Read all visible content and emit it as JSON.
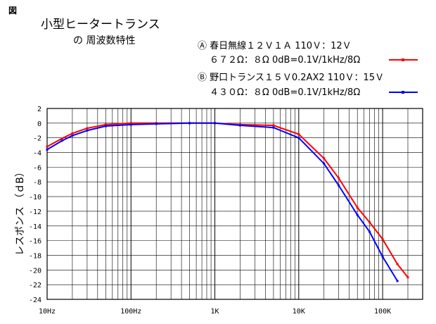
{
  "figure_label": "図",
  "chart_data": {
    "type": "line",
    "title": "小型ヒータートランス",
    "subtitle": "の 周波数特性",
    "ylabel": "レスポンス （ｄB）",
    "xlabel": "",
    "xscale": "log",
    "xlim": [
      10,
      300000
    ],
    "ylim": [
      -24,
      2
    ],
    "grid": true,
    "legend_position": "top-right",
    "x_tick_labels": [
      {
        "x": 10,
        "label": "10Hz"
      },
      {
        "x": 100,
        "label": "100Hz"
      },
      {
        "x": 1000,
        "label": "1K"
      },
      {
        "x": 10000,
        "label": "10K"
      },
      {
        "x": 100000,
        "label": "100K"
      }
    ],
    "y_ticks": [
      2,
      0,
      -2,
      -4,
      -6,
      -8,
      -10,
      -12,
      -14,
      -16,
      -18,
      -20,
      -22,
      -24
    ],
    "series": [
      {
        "name": "Ⓐ 春日無線１２Ｖ１Ａ 110Ｖ：12Ｖ",
        "note": "６７２Ω：８Ω 0dB=0.1V/1kHz/8Ω",
        "color": "#ff0000",
        "x": [
          10,
          15,
          20,
          30,
          50,
          100,
          200,
          500,
          1000,
          2000,
          5000,
          10000,
          20000,
          30000,
          50000,
          70000,
          100000,
          150000,
          200000
        ],
        "y": [
          -3.2,
          -2.1,
          -1.4,
          -0.7,
          -0.2,
          0,
          0,
          0,
          0,
          -0.2,
          -0.3,
          -1.5,
          -4.8,
          -7.5,
          -11.5,
          -13.5,
          -15.8,
          -19.2,
          -21.0
        ]
      },
      {
        "name": "Ⓑ 野口トランス１５Ｖ0.2AX2 110Ｖ：15Ｖ",
        "note": "４３０Ω：８Ω 0dB=0.1V/1kHz/8Ω",
        "color": "#0000ff",
        "x": [
          10,
          15,
          20,
          30,
          50,
          100,
          200,
          500,
          1000,
          2000,
          5000,
          10000,
          20000,
          30000,
          50000,
          70000,
          100000,
          150000
        ],
        "y": [
          -3.6,
          -2.4,
          -1.7,
          -1.0,
          -0.4,
          -0.2,
          -0.1,
          0,
          0,
          -0.3,
          -0.6,
          -2.0,
          -5.5,
          -8.5,
          -12.5,
          -14.8,
          -18.2,
          -21.5
        ]
      }
    ]
  }
}
